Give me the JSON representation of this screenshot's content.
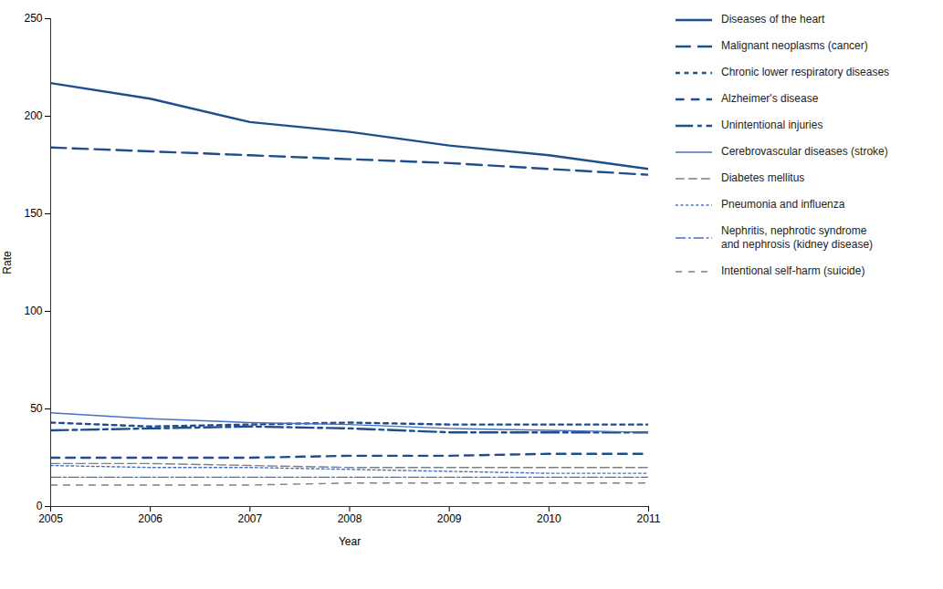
{
  "chart_data": {
    "type": "line",
    "xlabel": "Year",
    "ylabel": "Rate",
    "x": [
      2005,
      2006,
      2007,
      2008,
      2009,
      2010,
      2011
    ],
    "xlim": [
      2005,
      2011
    ],
    "xticks": [
      2005,
      2006,
      2007,
      2008,
      2009,
      2010,
      2011
    ],
    "ylim": [
      0,
      250
    ],
    "yticks": [
      0,
      50,
      100,
      150,
      200,
      250
    ],
    "grid": false,
    "legend": "right",
    "series": [
      {
        "name": "Diseases of the heart",
        "color": "#1F4E8C",
        "line_style": "solid",
        "values": [
          217,
          209,
          197,
          192,
          185,
          180,
          173
        ]
      },
      {
        "name": "Malignant neoplasms (cancer)",
        "color": "#1F4E8C",
        "line_style": "dashed",
        "values": [
          184,
          182,
          180,
          178,
          176,
          173,
          170
        ]
      },
      {
        "name": "Chronic lower respiratory diseases",
        "color": "#1F4E8C",
        "line_style": "dotted",
        "values": [
          43,
          41,
          42,
          43,
          42,
          42,
          42
        ]
      },
      {
        "name": "Alzheimer's disease",
        "color": "#1F4E8C",
        "line_style": "dashed_short",
        "values": [
          25,
          25,
          25,
          26,
          26,
          27,
          27
        ]
      },
      {
        "name": "Unintentional injuries",
        "color": "#1F4E8C",
        "line_style": "dashdot",
        "values": [
          39,
          40,
          41,
          40,
          38,
          38,
          38
        ]
      },
      {
        "name": "Cerebrovascular diseases (stroke)",
        "color": "#4472C4",
        "line_style": "solid",
        "values": [
          48,
          45,
          43,
          42,
          40,
          39,
          38
        ]
      },
      {
        "name": "Diabetes mellitus",
        "color": "#7F7F7F",
        "line_style": "dashed",
        "values": [
          22,
          22,
          21,
          20,
          20,
          20,
          20
        ]
      },
      {
        "name": "Pneumonia and influenza",
        "color": "#4472C4",
        "line_style": "dotted",
        "values": [
          21,
          20,
          20,
          19,
          18,
          17,
          17
        ]
      },
      {
        "name": "Nephritis, nephrotic syndrome\nand nephrosis (kidney disease)",
        "color": "#4472C4",
        "line_style": "dashdot",
        "values": [
          15,
          15,
          15,
          15,
          15,
          15,
          15
        ]
      },
      {
        "name": "Intentional self-harm (suicide)",
        "color": "#7F7F7F",
        "line_style": "dashed_long",
        "values": [
          11,
          11,
          11,
          12,
          12,
          12,
          12
        ]
      }
    ]
  }
}
